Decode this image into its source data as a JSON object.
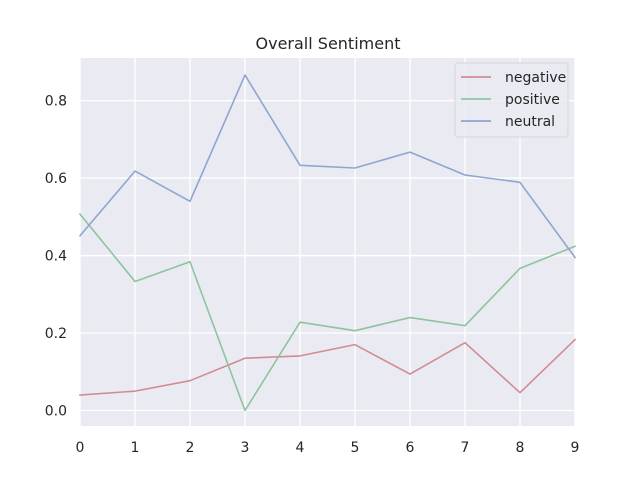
{
  "chart_data": {
    "type": "line",
    "title": "Overall Sentiment",
    "xlabel": "",
    "ylabel": "",
    "x": [
      0,
      1,
      2,
      3,
      4,
      5,
      6,
      7,
      8,
      9
    ],
    "x_ticks": [
      "0",
      "1",
      "2",
      "3",
      "4",
      "5",
      "6",
      "7",
      "8",
      "9"
    ],
    "y_ticks": [
      "0.0",
      "0.2",
      "0.4",
      "0.6",
      "0.8"
    ],
    "xlim": [
      0,
      9
    ],
    "ylim": [
      -0.04,
      0.91
    ],
    "grid": true,
    "legend_position": "top-right",
    "background_color": "#eaeaf2",
    "grid_color": "#ffffff",
    "series": [
      {
        "name": "negative",
        "color": "#d38b93",
        "values": [
          0.04,
          0.05,
          0.077,
          0.135,
          0.141,
          0.17,
          0.094,
          0.175,
          0.046,
          0.183
        ]
      },
      {
        "name": "positive",
        "color": "#8dc49e",
        "values": [
          0.507,
          0.333,
          0.384,
          0.0,
          0.228,
          0.206,
          0.24,
          0.219,
          0.367,
          0.424
        ]
      },
      {
        "name": "neutral",
        "color": "#8fa6d0",
        "values": [
          0.451,
          0.618,
          0.54,
          0.866,
          0.633,
          0.626,
          0.667,
          0.608,
          0.589,
          0.395
        ]
      }
    ]
  }
}
